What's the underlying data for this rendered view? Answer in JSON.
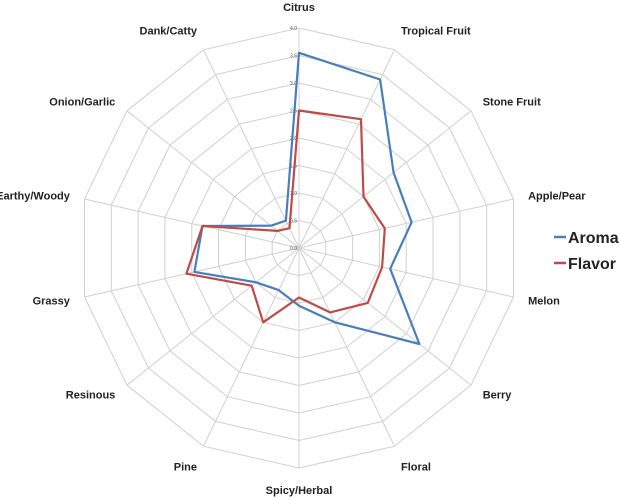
{
  "chart_data": {
    "type": "radar",
    "title": "",
    "categories": [
      "Citrus",
      "Tropical Fruit",
      "Stone Fruit",
      "Apple/Pear",
      "Melon",
      "Berry",
      "Floral",
      "Spicy/Herbal",
      "Pine",
      "Resinous",
      "Grassy",
      "Earthy/Woody",
      "Onion/Garlic",
      "Dank/Catty"
    ],
    "r_ticks": [
      "0.0",
      "0.5",
      "1.0",
      "1.5",
      "2.0",
      "2.5",
      "3.0",
      "3.5",
      "4.0"
    ],
    "rlim": [
      0,
      4
    ],
    "grid": true,
    "legend_position": "right",
    "series": [
      {
        "name": "Aroma",
        "color": "#4a7ebb",
        "values": [
          3.55,
          3.4,
          2.2,
          2.1,
          1.7,
          2.8,
          1.5,
          1.05,
          0.85,
          1.0,
          1.95,
          1.8,
          0.65,
          0.55
        ]
      },
      {
        "name": "Flavor",
        "color": "#be4b48",
        "values": [
          2.5,
          2.6,
          1.5,
          1.6,
          1.55,
          1.6,
          1.3,
          0.9,
          1.5,
          1.1,
          2.1,
          1.8,
          0.5,
          0.4
        ]
      }
    ]
  }
}
